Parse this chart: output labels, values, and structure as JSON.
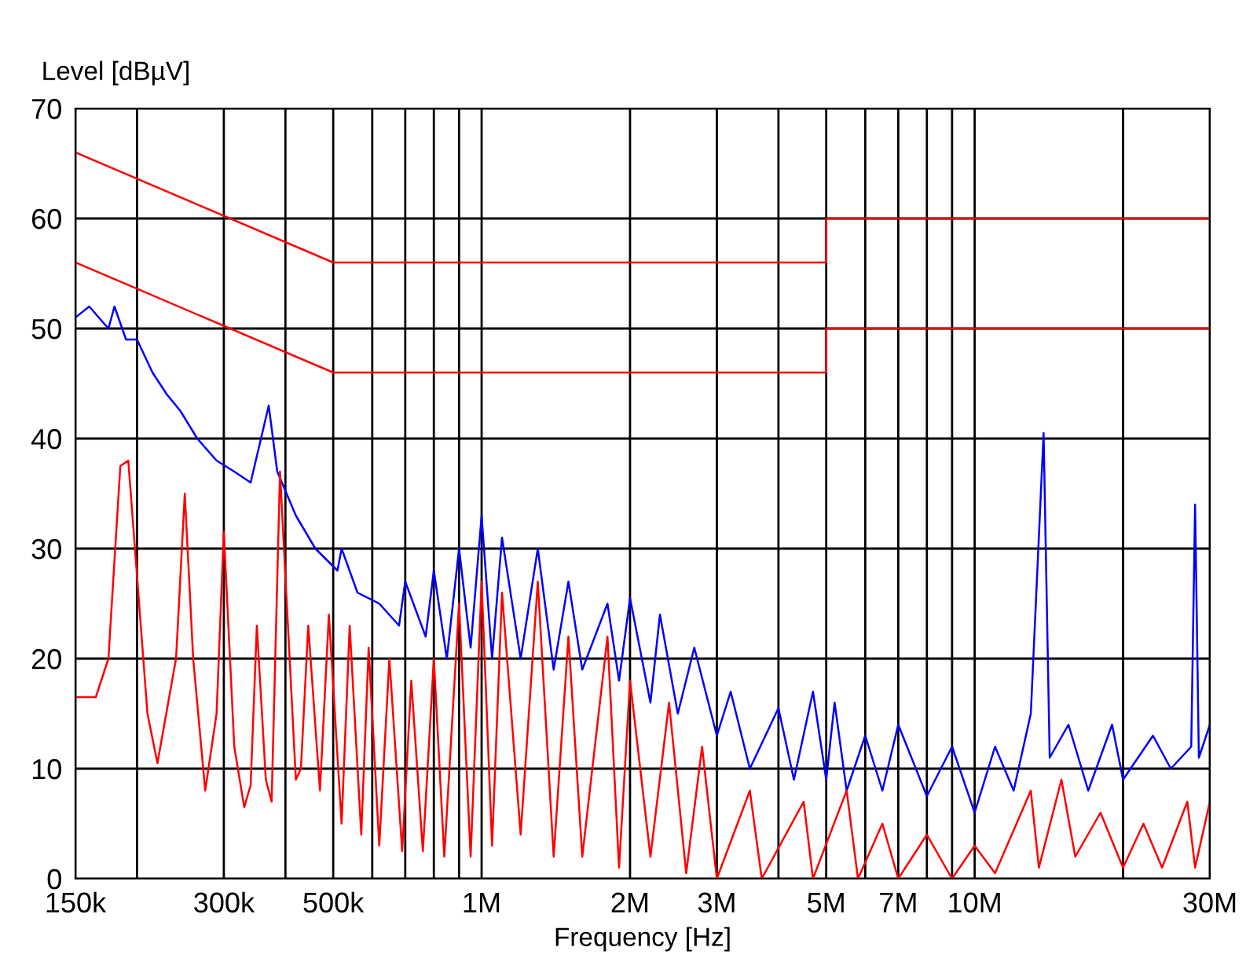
{
  "chart_data": {
    "type": "line",
    "xlabel": "Frequency [Hz]",
    "ylabel": "Level [dBµV]",
    "log": "x",
    "grid": true,
    "legend": false,
    "marker": "none",
    "line_style": "solid",
    "xlim": [
      150000,
      30000000
    ],
    "ylim": [
      0,
      70
    ],
    "yticks": [
      0,
      10,
      20,
      30,
      40,
      50,
      60,
      70
    ],
    "xticks": [
      {
        "value": 150000,
        "label": "150k"
      },
      {
        "value": 200000,
        "label": null
      },
      {
        "value": 300000,
        "label": "300k"
      },
      {
        "value": 400000,
        "label": null
      },
      {
        "value": 500000,
        "label": "500k"
      },
      {
        "value": 600000,
        "label": null
      },
      {
        "value": 700000,
        "label": null
      },
      {
        "value": 800000,
        "label": null
      },
      {
        "value": 900000,
        "label": null
      },
      {
        "value": 1000000,
        "label": "1M"
      },
      {
        "value": 2000000,
        "label": "2M"
      },
      {
        "value": 3000000,
        "label": "3M"
      },
      {
        "value": 4000000,
        "label": null
      },
      {
        "value": 5000000,
        "label": "5M"
      },
      {
        "value": 6000000,
        "label": null
      },
      {
        "value": 7000000,
        "label": "7M"
      },
      {
        "value": 8000000,
        "label": null
      },
      {
        "value": 9000000,
        "label": null
      },
      {
        "value": 10000000,
        "label": "10M"
      },
      {
        "value": 20000000,
        "label": null
      },
      {
        "value": 30000000,
        "label": "30M"
      }
    ],
    "series": [
      {
        "color": "#ff0000",
        "x": [
          150000,
          500000,
          5000000,
          5000000,
          30000000
        ],
        "values": [
          66,
          56,
          56,
          60,
          60
        ]
      },
      {
        "color": "#ff0000",
        "x": [
          150000,
          500000,
          5000000,
          5000000,
          30000000
        ],
        "values": [
          56,
          46,
          46,
          50,
          50
        ]
      },
      {
        "color": "#0000ff",
        "x": [
          150000,
          160000,
          175000,
          180000,
          190000,
          200000,
          215000,
          230000,
          245000,
          265000,
          290000,
          315000,
          340000,
          370000,
          385000,
          420000,
          460000,
          510000,
          520000,
          560000,
          620000,
          680000,
          700000,
          770000,
          800000,
          850000,
          900000,
          950000,
          1000000,
          1050000,
          1100000,
          1200000,
          1300000,
          1400000,
          1500000,
          1600000,
          1800000,
          1900000,
          2000000,
          2200000,
          2300000,
          2500000,
          2700000,
          3000000,
          3200000,
          3500000,
          4000000,
          4300000,
          4700000,
          5000000,
          5200000,
          5500000,
          6000000,
          6500000,
          7000000,
          8000000,
          9000000,
          10000000,
          11000000,
          12000000,
          13000000,
          13800000,
          14200000,
          15500000,
          17000000,
          19000000,
          20000000,
          23000000,
          25000000,
          27500000,
          28000000,
          28500000,
          30000000
        ],
        "values": [
          51,
          52,
          50,
          52,
          49,
          49,
          46,
          44,
          42.5,
          40,
          38,
          37,
          36,
          43,
          37,
          33,
          30,
          28,
          30,
          26,
          25,
          23,
          27,
          22,
          28,
          20,
          30,
          21,
          33,
          20,
          31,
          20,
          30,
          19,
          27,
          19,
          25,
          18,
          25.5,
          16,
          24,
          15,
          21,
          13,
          17,
          10,
          15.5,
          9,
          17,
          9,
          16,
          8,
          13,
          8,
          14,
          7.5,
          12,
          6,
          12,
          8,
          15,
          40.5,
          11,
          14,
          8,
          14,
          9,
          13,
          10,
          12,
          34,
          11,
          14
        ]
      },
      {
        "color": "#ff0000",
        "x": [
          150000,
          165000,
          175000,
          185000,
          192000,
          210000,
          220000,
          240000,
          250000,
          260000,
          275000,
          290000,
          300000,
          315000,
          330000,
          340000,
          350000,
          365000,
          375000,
          390000,
          420000,
          430000,
          445000,
          470000,
          490000,
          520000,
          540000,
          570000,
          590000,
          620000,
          650000,
          690000,
          720000,
          760000,
          800000,
          840000,
          900000,
          950000,
          1000000,
          1050000,
          1100000,
          1200000,
          1300000,
          1400000,
          1500000,
          1600000,
          1800000,
          1900000,
          2000000,
          2200000,
          2400000,
          2600000,
          2800000,
          3000000,
          3500000,
          3700000,
          4500000,
          4700000,
          5500000,
          5800000,
          6500000,
          7000000,
          8000000,
          9000000,
          10000000,
          11000000,
          13000000,
          13500000,
          15000000,
          16000000,
          18000000,
          20000000,
          22000000,
          24000000,
          27000000,
          28000000,
          30000000
        ],
        "values": [
          16.5,
          16.5,
          20,
          37.5,
          38,
          15,
          10.5,
          20,
          35,
          20,
          8,
          15,
          31.5,
          12,
          6.5,
          8.5,
          23,
          9,
          7,
          37,
          9,
          10,
          23,
          8,
          24,
          5,
          23,
          4,
          21,
          3,
          20,
          2.5,
          18,
          2.5,
          20,
          2,
          25,
          2,
          27,
          3,
          26,
          4,
          27,
          2,
          22,
          2,
          22,
          1,
          18,
          2,
          16,
          0.5,
          12,
          0,
          8,
          0,
          7,
          0,
          8,
          0,
          5,
          0,
          4,
          0,
          3,
          0.5,
          8,
          1,
          9,
          2,
          6,
          1,
          5,
          1,
          7,
          1,
          7
        ]
      }
    ]
  }
}
